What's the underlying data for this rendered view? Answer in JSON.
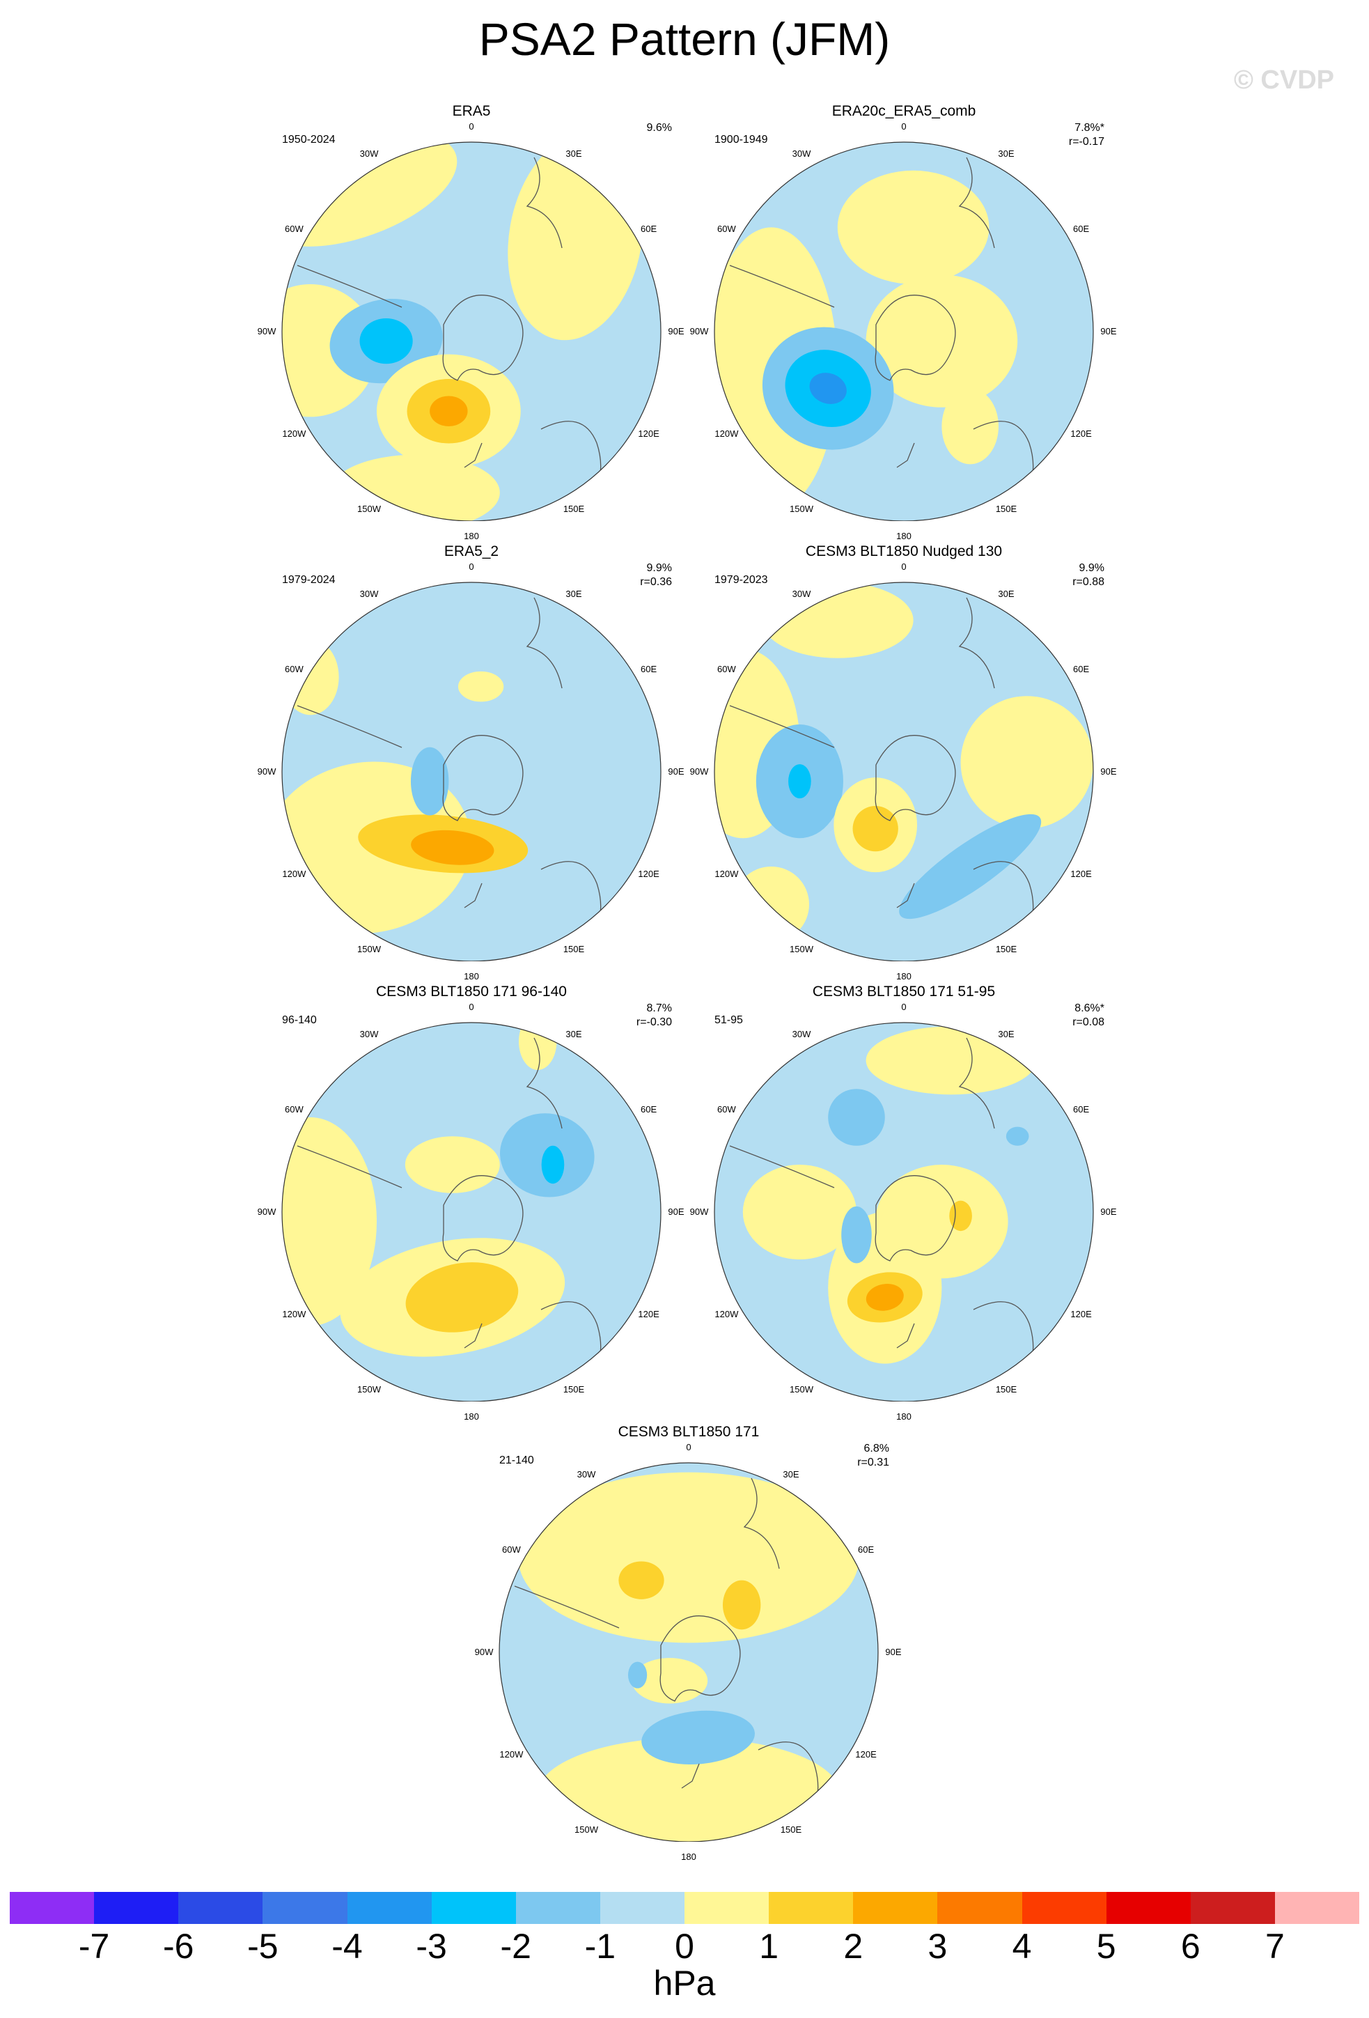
{
  "figure": {
    "title": "PSA2 Pattern (JFM)",
    "watermark": "© CVDP",
    "unit": "hPa"
  },
  "longitude_labels": [
    "0",
    "30E",
    "60E",
    "90E",
    "120E",
    "150E",
    "180",
    "150W",
    "120W",
    "90W",
    "60W",
    "30W"
  ],
  "panels": [
    {
      "title": "ERA5",
      "years": "1950-2024",
      "variance": "9.6%",
      "corr": ""
    },
    {
      "title": "ERA20c_ERA5_comb",
      "years": "1900-1949",
      "variance": "7.8%*",
      "corr": "r=-0.17"
    },
    {
      "title": "ERA5_2",
      "years": "1979-2024",
      "variance": "9.9%",
      "corr": "r=0.36"
    },
    {
      "title": "CESM3 BLT1850 Nudged 130",
      "years": "1979-2023",
      "variance": "9.9%",
      "corr": "r=0.88"
    },
    {
      "title": "CESM3 BLT1850 171 96-140",
      "years": "96-140",
      "variance": "8.7%",
      "corr": "r=-0.30"
    },
    {
      "title": "CESM3 BLT1850 171 51-95",
      "years": "51-95",
      "variance": "8.6%*",
      "corr": "r=0.08"
    },
    {
      "title": "CESM3 BLT1850 171",
      "years": "21-140",
      "variance": "6.8%",
      "corr": "r=0.31"
    }
  ],
  "colorbar": {
    "colors": [
      "#8e2df5",
      "#1e1ef5",
      "#2b4be6",
      "#3c78e8",
      "#2196f0",
      "#00c3fa",
      "#7dc8f0",
      "#b4def2",
      "#fff796",
      "#fcd22d",
      "#fca800",
      "#fc7a00",
      "#fc3c00",
      "#e60000",
      "#cd1e1e",
      "#ffb4b4"
    ],
    "labels": [
      "-7",
      "-6",
      "-5",
      "-4",
      "-3",
      "-2",
      "-1",
      "0",
      "1",
      "2",
      "3",
      "4",
      "5",
      "6",
      "7"
    ]
  },
  "colors": {
    "neg1": "#b4def2",
    "neg2": "#7dc8f0",
    "neg3": "#00c3fa",
    "neg4": "#2196f0",
    "pos1": "#fff796",
    "pos2": "#fcd22d",
    "pos3": "#fca800"
  }
}
